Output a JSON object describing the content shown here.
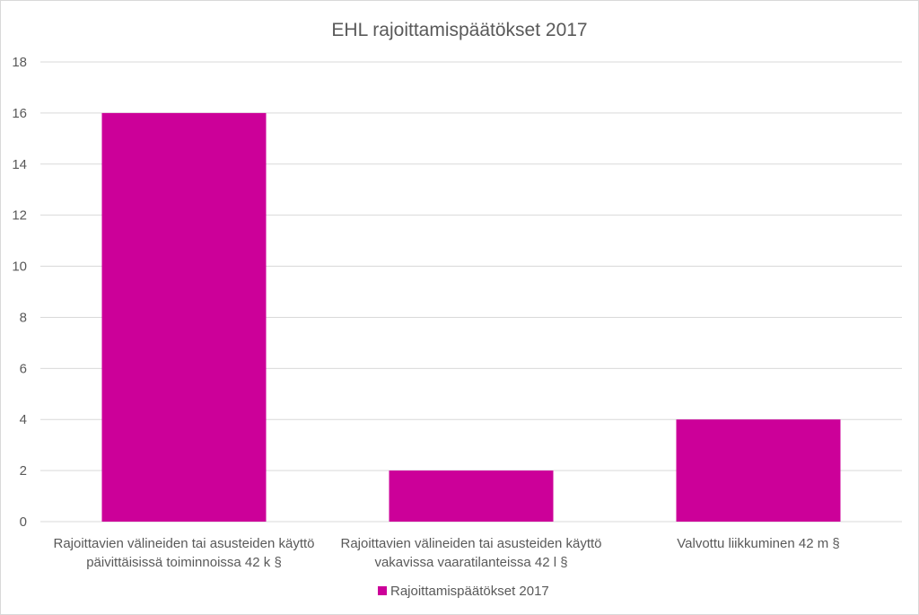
{
  "chart_data": {
    "type": "bar",
    "title": "EHL rajoittamispäätökset 2017",
    "xlabel": "",
    "ylabel": "",
    "ylim": [
      0,
      18
    ],
    "yticks": [
      "0",
      "2",
      "4",
      "6",
      "8",
      "10",
      "12",
      "14",
      "16",
      "18"
    ],
    "grid": true,
    "legend_position": "bottom",
    "categories": [
      {
        "label": "Rajoittavien välineiden tai asusteiden käyttö päivittäisissä toiminnoissa 42 k §",
        "lines": [
          "Rajoittavien välineiden tai asusteiden käyttö",
          "päivittäisissä toiminnoissa 42 k §"
        ]
      },
      {
        "label": "Rajoittavien välineiden tai asusteiden käyttö vakavissa vaaratilanteissa 42 l §",
        "lines": [
          "Rajoittavien välineiden tai asusteiden käyttö",
          "vakavissa vaaratilanteissa 42 l §"
        ]
      },
      {
        "label": "Valvottu liikkuminen 42 m §",
        "lines": [
          "Valvottu liikkuminen 42 m §"
        ]
      }
    ],
    "series": [
      {
        "name": "Rajoittamispäätökset 2017",
        "color": "#cc0099",
        "values": [
          16,
          2,
          4
        ]
      }
    ]
  }
}
